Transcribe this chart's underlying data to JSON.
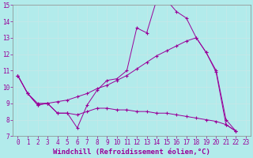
{
  "xlabel": "Windchill (Refroidissement éolien,°C)",
  "bg_color": "#b2ebeb",
  "line_color": "#990099",
  "grid_color": "#c8e8e8",
  "xlim_min": -0.5,
  "xlim_max": 23.5,
  "ylim_min": 7,
  "ylim_max": 15,
  "xticks": [
    0,
    1,
    2,
    3,
    4,
    5,
    6,
    7,
    8,
    9,
    10,
    11,
    12,
    13,
    14,
    15,
    16,
    17,
    18,
    19,
    20,
    21,
    22,
    23
  ],
  "yticks": [
    7,
    8,
    9,
    10,
    11,
    12,
    13,
    14,
    15
  ],
  "series": [
    {
      "x": [
        0,
        1,
        2,
        3,
        4,
        5,
        6,
        7,
        8,
        9,
        10,
        11,
        12,
        13,
        14,
        15,
        16,
        17,
        18,
        19,
        20,
        21,
        22
      ],
      "y": [
        10.7,
        9.6,
        8.9,
        9.0,
        8.4,
        8.4,
        7.5,
        8.9,
        9.8,
        10.4,
        10.5,
        11.0,
        13.6,
        13.3,
        15.3,
        15.3,
        14.6,
        14.2,
        13.0,
        12.1,
        10.9,
        7.7,
        7.3
      ]
    },
    {
      "x": [
        0,
        1,
        2,
        3,
        4,
        5,
        6,
        7,
        8,
        9,
        10,
        11,
        12,
        13,
        14,
        15,
        16,
        17,
        18,
        19,
        20,
        21,
        22
      ],
      "y": [
        10.7,
        9.6,
        9.0,
        9.0,
        9.1,
        9.2,
        9.4,
        9.6,
        9.9,
        10.1,
        10.4,
        10.7,
        11.1,
        11.5,
        11.9,
        12.2,
        12.5,
        12.8,
        13.0,
        12.1,
        11.0,
        8.0,
        7.3
      ]
    },
    {
      "x": [
        0,
        1,
        2,
        3,
        4,
        5,
        6,
        7,
        8,
        9,
        10,
        11,
        12,
        13,
        14,
        15,
        16,
        17,
        18,
        19,
        20,
        21,
        22
      ],
      "y": [
        10.7,
        9.6,
        8.9,
        9.0,
        8.4,
        8.4,
        8.3,
        8.5,
        8.7,
        8.7,
        8.6,
        8.6,
        8.5,
        8.5,
        8.4,
        8.4,
        8.3,
        8.2,
        8.1,
        8.0,
        7.9,
        7.7,
        7.3
      ]
    }
  ],
  "figsize": [
    3.2,
    2.0
  ],
  "dpi": 100,
  "tick_fontsize": 5.5,
  "label_fontsize": 6.5
}
